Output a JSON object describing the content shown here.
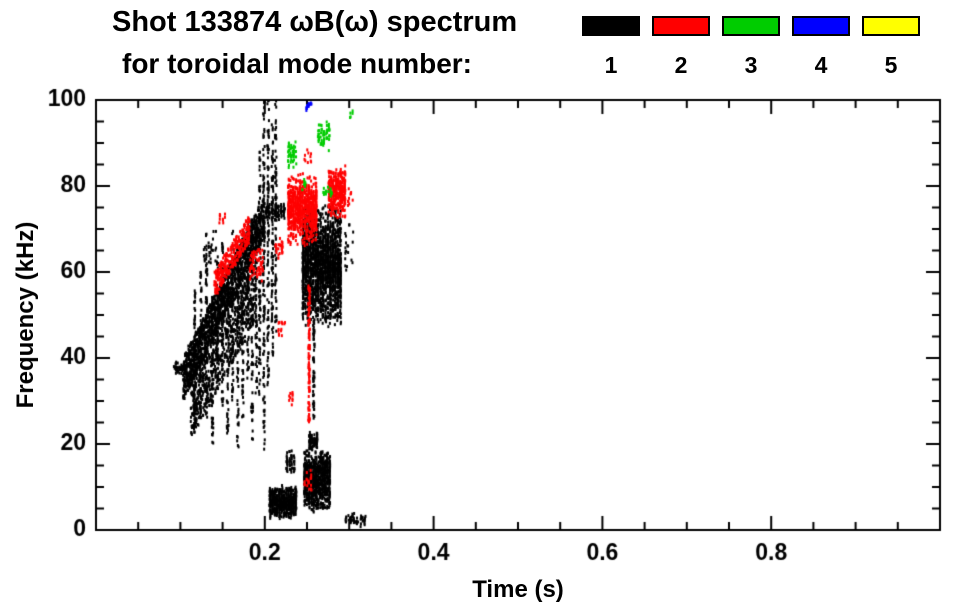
{
  "chart_data": {
    "type": "scatter",
    "title_line1": "Shot 133874 ωB(ω) spectrum",
    "title_line2": "for toroidal mode number:",
    "xlabel": "Time (s)",
    "ylabel": "Frequency (kHz)",
    "xlim": [
      0,
      1.0
    ],
    "ylim": [
      0,
      100
    ],
    "x_major_ticks": [
      0.2,
      0.4,
      0.6,
      0.8
    ],
    "x_tick_labels": [
      "0.2",
      "0.4",
      "0.6",
      "0.8"
    ],
    "x_minor_step": 0.05,
    "y_major_ticks": [
      0,
      20,
      40,
      60,
      80,
      100
    ],
    "y_tick_labels": [
      "0",
      "20",
      "40",
      "60",
      "80",
      "100"
    ],
    "y_minor_step": 5,
    "grid": false,
    "legend_position": "top-right",
    "seed": 1337,
    "legend": {
      "items": [
        {
          "label": "1",
          "color": "#000000"
        },
        {
          "label": "2",
          "color": "#ff0000"
        },
        {
          "label": "3",
          "color": "#00cc00"
        },
        {
          "label": "4",
          "color": "#0000ff"
        },
        {
          "label": "5",
          "color": "#ffff00"
        }
      ]
    },
    "series": [
      {
        "name": "toroidal mode n=1",
        "color": "#000000",
        "clusters": [
          {
            "type": "blob",
            "t": [
              0.092,
              0.108
            ],
            "f": [
              36,
              39.5
            ],
            "n": 45,
            "cols": 8
          },
          {
            "type": "band",
            "t": [
              0.103,
              0.2
            ],
            "f": [
              35,
              73
            ],
            "df": 5,
            "n": 1500,
            "cols": 46
          },
          {
            "type": "band",
            "t": [
              0.112,
              0.19
            ],
            "f": [
              28,
              56
            ],
            "df": 7,
            "n": 650,
            "cols": 30
          },
          {
            "type": "vline",
            "t": 0.117,
            "f": [
              24,
              56
            ],
            "n": 55
          },
          {
            "type": "vline",
            "t": 0.124,
            "f": [
              30,
              60
            ],
            "n": 55
          },
          {
            "type": "vline",
            "t": 0.131,
            "f": [
              26,
              62
            ],
            "n": 55
          },
          {
            "type": "vline",
            "t": 0.138,
            "f": [
              20,
              55
            ],
            "n": 55
          },
          {
            "type": "vline",
            "t": 0.144,
            "f": [
              34,
              64
            ],
            "n": 55
          },
          {
            "type": "vline",
            "t": 0.15,
            "f": [
              28,
              67
            ],
            "n": 55
          },
          {
            "type": "vline",
            "t": 0.156,
            "f": [
              22,
              62
            ],
            "n": 55
          },
          {
            "type": "vline",
            "t": 0.162,
            "f": [
              30,
              70
            ],
            "n": 55
          },
          {
            "type": "vline",
            "t": 0.168,
            "f": [
              19,
              66
            ],
            "n": 60
          },
          {
            "type": "vline",
            "t": 0.174,
            "f": [
              26,
              71
            ],
            "n": 60
          },
          {
            "type": "vline",
            "t": 0.18,
            "f": [
              34,
              73
            ],
            "n": 60
          },
          {
            "type": "vline",
            "t": 0.185,
            "f": [
              21,
              73
            ],
            "n": 60
          },
          {
            "type": "vline",
            "t": 0.19,
            "f": [
              30,
              74
            ],
            "n": 60
          },
          {
            "type": "vline",
            "t": 0.194,
            "f": [
              30,
              88
            ],
            "n": 80
          },
          {
            "type": "vline",
            "t": 0.199,
            "f": [
              18,
              100
            ],
            "n": 110
          },
          {
            "type": "vline",
            "t": 0.204,
            "f": [
              33,
              100
            ],
            "n": 100
          },
          {
            "type": "vline",
            "t": 0.209,
            "f": [
              40,
              97
            ],
            "n": 90
          },
          {
            "type": "vline",
            "t": 0.213,
            "f": [
              46,
              100
            ],
            "n": 85
          },
          {
            "type": "vline",
            "t": 0.258,
            "f": [
              26,
              50
            ],
            "n": 55
          },
          {
            "type": "blob",
            "t": [
              0.2,
              0.225
            ],
            "f": [
              72,
              76
            ],
            "n": 90,
            "cols": 7
          },
          {
            "type": "blob",
            "t": [
              0.127,
              0.143
            ],
            "f": [
              60,
              70
            ],
            "n": 35,
            "cols": 6
          },
          {
            "type": "blob",
            "t": [
              0.244,
              0.291
            ],
            "f": [
              47,
              76
            ],
            "n": 1900,
            "cols": 16
          },
          {
            "type": "blob",
            "t": [
              0.205,
              0.238
            ],
            "f": [
              2.5,
              10.5
            ],
            "n": 520,
            "cols": 12
          },
          {
            "type": "blob",
            "t": [
              0.246,
              0.278
            ],
            "f": [
              4,
              19
            ],
            "n": 800,
            "cols": 12
          },
          {
            "type": "blob",
            "t": [
              0.252,
              0.263
            ],
            "f": [
              18,
              23
            ],
            "n": 90,
            "cols": 4
          },
          {
            "type": "blob",
            "t": [
              0.225,
              0.236
            ],
            "f": [
              13,
              19
            ],
            "n": 45,
            "cols": 4
          },
          {
            "type": "blob",
            "t": [
              0.295,
              0.305
            ],
            "f": [
              58,
              72
            ],
            "n": 20,
            "cols": 5
          },
          {
            "type": "blob",
            "t": [
              0.295,
              0.32
            ],
            "f": [
              0.5,
              4
            ],
            "n": 45,
            "cols": 10
          }
        ]
      },
      {
        "name": "toroidal mode n=2",
        "color": "#ff0000",
        "clusters": [
          {
            "type": "band",
            "t": [
              0.14,
              0.182
            ],
            "f": [
              57,
              70
            ],
            "df": 3,
            "n": 300,
            "cols": 18
          },
          {
            "type": "blob",
            "t": [
              0.182,
              0.198
            ],
            "f": [
              57,
              66
            ],
            "n": 70,
            "cols": 8
          },
          {
            "type": "blob",
            "t": [
              0.212,
              0.222
            ],
            "f": [
              63,
              68
            ],
            "n": 28,
            "cols": 4
          },
          {
            "type": "blob",
            "t": [
              0.227,
              0.262
            ],
            "f": [
              66,
              83
            ],
            "n": 750,
            "cols": 13
          },
          {
            "type": "vline",
            "t": 0.2525,
            "f": [
              25,
              57
            ],
            "n": 110
          },
          {
            "type": "blob",
            "t": [
              0.275,
              0.296
            ],
            "f": [
              72,
              85
            ],
            "n": 330,
            "cols": 8
          },
          {
            "type": "blob",
            "t": [
              0.246,
              0.256
            ],
            "f": [
              8,
              14
            ],
            "n": 20,
            "cols": 4
          },
          {
            "type": "blob",
            "t": [
              0.215,
              0.225
            ],
            "f": [
              45,
              50
            ],
            "n": 14,
            "cols": 3
          },
          {
            "type": "blob",
            "t": [
              0.228,
              0.234
            ],
            "f": [
              28,
              33
            ],
            "n": 10,
            "cols": 2
          },
          {
            "type": "blob",
            "t": [
              0.246,
              0.256
            ],
            "f": [
              85,
              90
            ],
            "n": 10,
            "cols": 3
          },
          {
            "type": "blob",
            "t": [
              0.298,
              0.306
            ],
            "f": [
              75,
              80
            ],
            "n": 10,
            "cols": 3
          },
          {
            "type": "blob",
            "t": [
              0.145,
              0.155
            ],
            "f": [
              70,
              74
            ],
            "n": 10,
            "cols": 3
          }
        ]
      },
      {
        "name": "toroidal mode n=3",
        "color": "#00cc00",
        "clusters": [
          {
            "type": "blob",
            "t": [
              0.227,
              0.238
            ],
            "f": [
              84,
              91
            ],
            "n": 45,
            "cols": 4
          },
          {
            "type": "blob",
            "t": [
              0.262,
              0.278
            ],
            "f": [
              88,
              95
            ],
            "n": 55,
            "cols": 5
          },
          {
            "type": "blob",
            "t": [
              0.268,
              0.28
            ],
            "f": [
              77,
              80
            ],
            "n": 18,
            "cols": 4
          },
          {
            "type": "blob",
            "t": [
              0.242,
              0.249
            ],
            "f": [
              79,
              82
            ],
            "n": 8,
            "cols": 2
          },
          {
            "type": "blob",
            "t": [
              0.3,
              0.306
            ],
            "f": [
              95,
              98
            ],
            "n": 5,
            "cols": 2
          }
        ]
      },
      {
        "name": "toroidal mode n=4",
        "color": "#0000ff",
        "clusters": [
          {
            "type": "blob",
            "t": [
              0.248,
              0.256
            ],
            "f": [
              97,
              100
            ],
            "n": 14,
            "cols": 3
          }
        ]
      },
      {
        "name": "toroidal mode n=5",
        "color": "#ffff00",
        "clusters": []
      }
    ]
  }
}
